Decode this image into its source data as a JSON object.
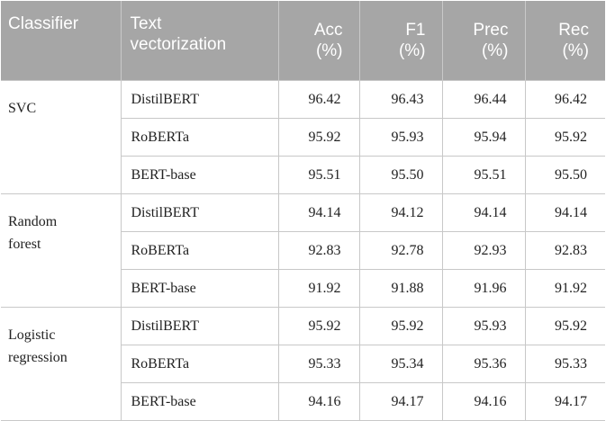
{
  "header": {
    "classifier": "Classifier",
    "text_vec_1": "Text",
    "text_vec_2": "vectorization",
    "acc_1": "Acc",
    "acc_2": "(%)",
    "f1_1": "F1",
    "f1_2": "(%)",
    "prec_1": "Prec",
    "prec_2": "(%)",
    "rec_1": "Rec",
    "rec_2": "(%)"
  },
  "groups": [
    {
      "classifier_lines": [
        "SVC"
      ],
      "rows": [
        {
          "vec": "DistilBERT",
          "acc": "96.42",
          "f1": "96.43",
          "prec": "96.44",
          "rec": "96.42"
        },
        {
          "vec": "RoBERTa",
          "acc": "95.92",
          "f1": "95.93",
          "prec": "95.94",
          "rec": "95.92"
        },
        {
          "vec": "BERT-base",
          "acc": "95.51",
          "f1": "95.50",
          "prec": "95.51",
          "rec": "95.50"
        }
      ]
    },
    {
      "classifier_lines": [
        "Random",
        "forest"
      ],
      "rows": [
        {
          "vec": "DistilBERT",
          "acc": "94.14",
          "f1": "94.12",
          "prec": "94.14",
          "rec": "94.14"
        },
        {
          "vec": "RoBERTa",
          "acc": "92.83",
          "f1": "92.78",
          "prec": "92.93",
          "rec": "92.83"
        },
        {
          "vec": "BERT-base",
          "acc": "91.92",
          "f1": "91.88",
          "prec": "91.96",
          "rec": "91.92"
        }
      ]
    },
    {
      "classifier_lines": [
        "Logistic",
        "regression"
      ],
      "rows": [
        {
          "vec": "DistilBERT",
          "acc": "95.92",
          "f1": "95.92",
          "prec": "95.93",
          "rec": "95.92"
        },
        {
          "vec": "RoBERTa",
          "acc": "95.33",
          "f1": "95.34",
          "prec": "95.36",
          "rec": "95.33"
        },
        {
          "vec": "BERT-base",
          "acc": "94.16",
          "f1": "94.17",
          "prec": "94.16",
          "rec": "94.17"
        }
      ]
    }
  ]
}
